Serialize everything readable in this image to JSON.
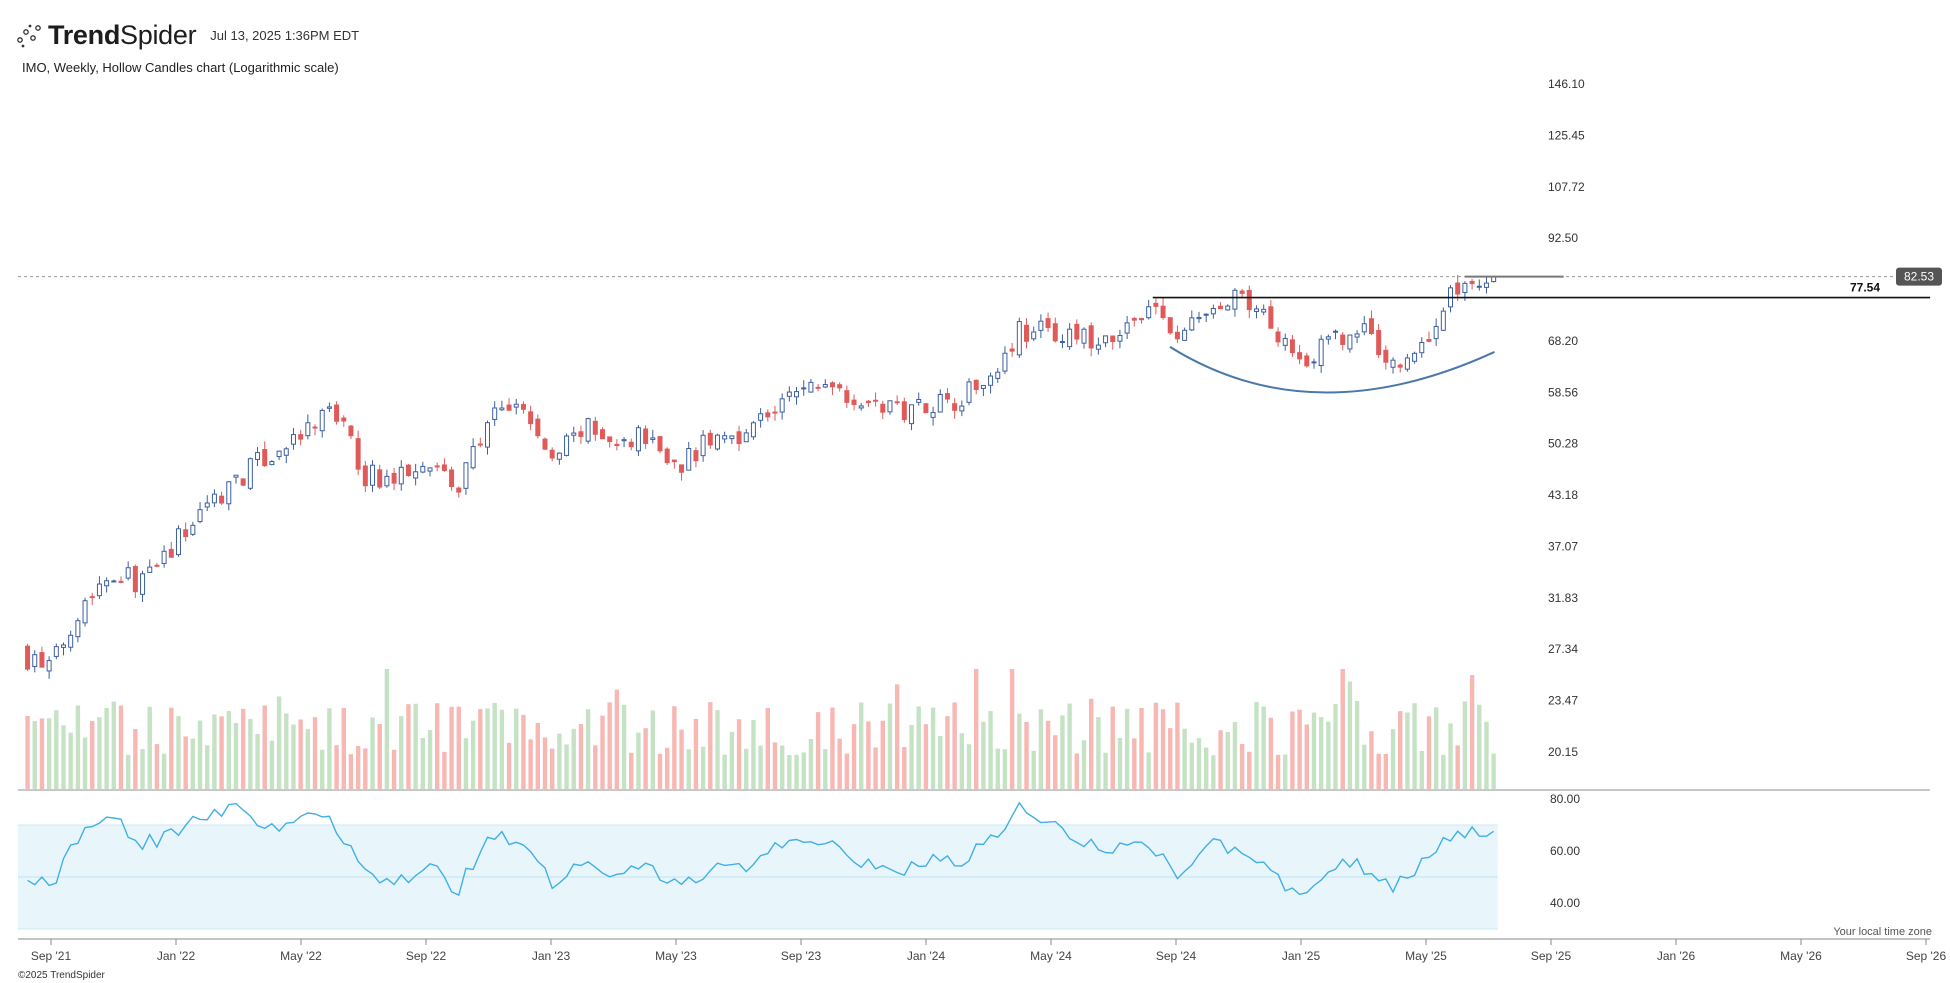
{
  "header": {
    "brand_bold": "Trend",
    "brand_light": "Spider",
    "timestamp": "Jul 13, 2025 1:36PM EDT"
  },
  "subtitle": "IMO, Weekly, Hollow Candles chart (Logarithmic scale)",
  "footer": {
    "timezone_note": "Your local time zone",
    "copyright": "©2025 TrendSpider"
  },
  "colors": {
    "up": "#3b5fa0",
    "down": "#e05a5a",
    "vol_up": "#c5e3c4",
    "vol_down": "#f7b7b3",
    "rsi_line": "#40b0e4",
    "rsi_band": "#e8f6fb",
    "cup_arc": "#4a78a8",
    "resistance": "#111111",
    "last_price_bg": "#555555"
  },
  "chart_data": {
    "type": "candlestick",
    "ticker": "IMO",
    "interval": "Weekly",
    "style": "Hollow Candles",
    "y_scale": "log",
    "price_axis_ticks": [
      "146.10",
      "125.45",
      "107.72",
      "92.50",
      "82.53",
      "68.20",
      "58.56",
      "50.28",
      "43.18",
      "37.07",
      "31.83",
      "27.34",
      "23.47",
      "20.15"
    ],
    "price_ylim": [
      20.15,
      146.1
    ],
    "x_axis_ticks": [
      "Sep '21",
      "Jan '22",
      "May '22",
      "Sep '22",
      "Jan '23",
      "May '23",
      "Sep '23",
      "Jan '24",
      "May '24",
      "Sep '24",
      "Jan '25",
      "May '25",
      "Sep '25",
      "Jan '26",
      "May '26",
      "Sep '26"
    ],
    "last_price": "82.53",
    "resistance_level": "77.54",
    "close_anchors": [
      [
        "Aug '21",
        27.0
      ],
      [
        "Sep '21",
        25.8
      ],
      [
        "Oct '21",
        31.5
      ],
      [
        "Nov '21",
        34.5
      ],
      [
        "Dec '21",
        33.2
      ],
      [
        "Jan '22",
        37.5
      ],
      [
        "Feb '22",
        42.0
      ],
      [
        "Mar '22",
        45.5
      ],
      [
        "Apr '22",
        48.5
      ],
      [
        "May '22",
        51.0
      ],
      [
        "Jun '22",
        56.0
      ],
      [
        "Jul '22",
        46.0
      ],
      [
        "Aug '22",
        45.0
      ],
      [
        "Sep '22",
        49.0
      ],
      [
        "Oct '22",
        43.5
      ],
      [
        "Nov '22",
        54.0
      ],
      [
        "Dec '22",
        56.5
      ],
      [
        "Jan '23",
        47.5
      ],
      [
        "Feb '23",
        53.0
      ],
      [
        "Mar '23",
        49.5
      ],
      [
        "Apr '23",
        52.0
      ],
      [
        "May '23",
        47.0
      ],
      [
        "Jun '23",
        50.5
      ],
      [
        "Jul '23",
        52.0
      ],
      [
        "Aug '23",
        55.0
      ],
      [
        "Sep '23",
        59.0
      ],
      [
        "Oct '23",
        60.5
      ],
      [
        "Nov '23",
        57.0
      ],
      [
        "Dec '23",
        55.5
      ],
      [
        "Jan '24",
        57.0
      ],
      [
        "Feb '24",
        57.5
      ],
      [
        "Mar '24",
        61.5
      ],
      [
        "Apr '24",
        70.5
      ],
      [
        "May '24",
        70.0
      ],
      [
        "Jun '24",
        68.5
      ],
      [
        "Jul '24",
        67.0
      ],
      [
        "Aug '24",
        76.0
      ],
      [
        "Sep '24",
        69.0
      ],
      [
        "Oct '24",
        74.0
      ],
      [
        "Nov '24",
        77.0
      ],
      [
        "Dec '24",
        72.5
      ],
      [
        "Jan '25",
        64.5
      ],
      [
        "Feb '25",
        68.0
      ],
      [
        "Mar '25",
        70.5
      ],
      [
        "Apr '25",
        63.0
      ],
      [
        "May '25",
        68.0
      ],
      [
        "Jun '25",
        80.5
      ],
      [
        "Jul '25",
        82.53
      ]
    ],
    "volume": {
      "y_axis": "none",
      "colored_by": "candle direction"
    },
    "rsi": {
      "axis_ticks": [
        "80.00",
        "60.00",
        "40.00"
      ],
      "band": [
        30,
        70
      ],
      "midline": 50,
      "anchors": [
        [
          "Aug '21",
          51
        ],
        [
          "Sep '21",
          46
        ],
        [
          "Oct '21",
          68
        ],
        [
          "Nov '21",
          72
        ],
        [
          "Dec '21",
          63
        ],
        [
          "Jan '22",
          66
        ],
        [
          "Feb '22",
          74
        ],
        [
          "Mar '22",
          76
        ],
        [
          "Apr '22",
          70
        ],
        [
          "May '22",
          72
        ],
        [
          "Jun '22",
          71
        ],
        [
          "Jul '22",
          52
        ],
        [
          "Aug '22",
          47
        ],
        [
          "Sep '22",
          55
        ],
        [
          "Oct '22",
          45
        ],
        [
          "Nov '22",
          66
        ],
        [
          "Dec '22",
          65
        ],
        [
          "Jan '23",
          48
        ],
        [
          "Feb '23",
          56
        ],
        [
          "Mar '23",
          48
        ],
        [
          "Apr '23",
          56
        ],
        [
          "May '23",
          46
        ],
        [
          "Jun '23",
          52
        ],
        [
          "Jul '23",
          53
        ],
        [
          "Aug '23",
          60
        ],
        [
          "Sep '23",
          64
        ],
        [
          "Oct '23",
          66
        ],
        [
          "Nov '23",
          55
        ],
        [
          "Dec '23",
          51
        ],
        [
          "Jan '24",
          56
        ],
        [
          "Feb '24",
          56
        ],
        [
          "Mar '24",
          63
        ],
        [
          "Apr '24",
          76
        ],
        [
          "May '24",
          70
        ],
        [
          "Jun '24",
          64
        ],
        [
          "Jul '24",
          59
        ],
        [
          "Aug '24",
          66
        ],
        [
          "Sep '24",
          49
        ],
        [
          "Oct '24",
          63
        ],
        [
          "Nov '24",
          59
        ],
        [
          "Dec '24",
          52
        ],
        [
          "Jan '25",
          40
        ],
        [
          "Feb '25",
          55
        ],
        [
          "Mar '25",
          54
        ],
        [
          "Apr '25",
          46
        ],
        [
          "May '25",
          57
        ],
        [
          "Jun '25",
          68
        ],
        [
          "Jul '25",
          67
        ]
      ]
    },
    "annotations": [
      "rounded cup / saucer arc beneath Sep '24 – Jun '25",
      "horizontal resistance line at 77.54",
      "dashed last-price line at 82.53"
    ]
  }
}
